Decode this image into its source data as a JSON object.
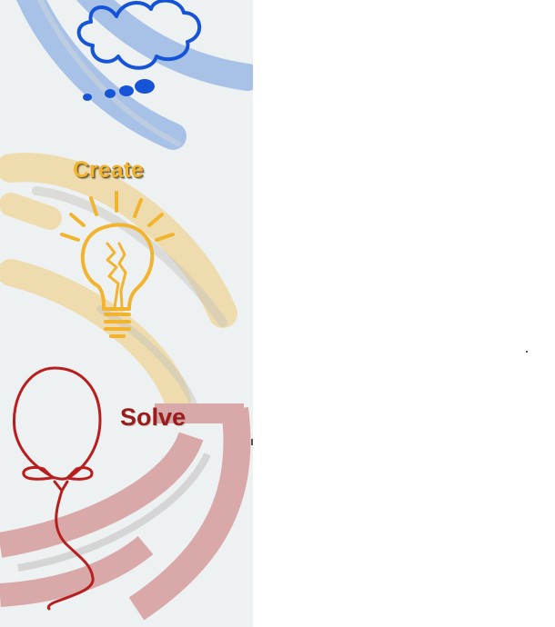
{
  "labels": {
    "create": "Create",
    "solve": "Solve"
  },
  "icons": {
    "thought": "thought-cloud-icon",
    "idea": "lightbulb-icon",
    "solution": "balloon-icon"
  },
  "colors": {
    "panel_background": "#eef1f1",
    "page_background": "#ffffff",
    "blue_arc": "#a8c1e6",
    "blue_icon": "#1554d6",
    "yellow_arc": "#efdcae",
    "yellow_icon": "#f2b42e",
    "red_arc": "#d9a9a9",
    "red_icon": "#b81e1e",
    "solve_text": "#9a1c1c"
  }
}
